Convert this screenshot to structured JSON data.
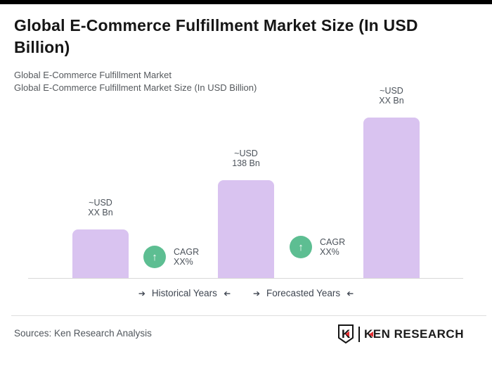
{
  "header": {
    "title": "Global E-Commerce Fulfillment Market Size (In USD Billion)",
    "subtitle1": "Global E-Commerce Fulfillment Market",
    "subtitle2": "Global E-Commerce Fulfillment Market Size (In USD Billion)"
  },
  "chart_data": {
    "type": "bar",
    "title": "Global E-Commerce Fulfillment Market Size (In USD Billion)",
    "categories": [
      "Historical Years",
      "",
      "Forecasted Years"
    ],
    "values": [
      69,
      139,
      228
    ],
    "data_labels": [
      "~USD XX Bn",
      "~USD 138 Bn",
      "~USD XX Bn"
    ],
    "annotations": [
      "CAGR XX%",
      "CAGR XX%"
    ],
    "legend": [
      "Historical Years",
      "Forecasted Years"
    ],
    "legend_position": "bottom",
    "grid": false,
    "axis_tick_labels_visible": false,
    "ylim": [
      0,
      240
    ],
    "bar_color": "#d9c3f0"
  },
  "bars": [
    {
      "label_line1": "~USD",
      "label_line2": "XX Bn"
    },
    {
      "label_line1": "~USD",
      "label_line2": "138 Bn"
    },
    {
      "label_line1": "~USD",
      "label_line2": "XX Bn"
    }
  ],
  "cagr_badges": [
    {
      "label": "CAGR",
      "value": "XX%"
    },
    {
      "label": "CAGR",
      "value": "XX%"
    }
  ],
  "icons": {
    "up_arrow": "↑",
    "legend_arrow": "➔"
  },
  "legend": {
    "items": [
      {
        "text": "Historical Years"
      },
      {
        "text": "Forecasted Years"
      }
    ]
  },
  "footer": {
    "sources": "Sources: Ken Research Analysis",
    "brand_k": "K",
    "brand_rest": "EN RESEARCH"
  },
  "colors": {
    "bar_fill": "#d9c3f0",
    "cagr_green": "#5dbe92",
    "logo_red": "#e62e32",
    "line_gray": "#d8d8d8"
  }
}
